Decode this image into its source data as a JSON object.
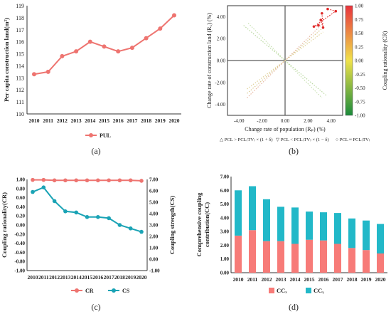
{
  "chart_data": [
    {
      "panel": "(a)",
      "type": "line",
      "categories": [
        "2010",
        "2011",
        "2012",
        "2013",
        "2014",
        "2015",
        "2016",
        "2017",
        "2018",
        "2019",
        "2020"
      ],
      "series": [
        {
          "name": "PUL",
          "values": [
            113.3,
            113.5,
            114.8,
            115.2,
            116.0,
            115.6,
            115.2,
            115.5,
            116.3,
            117.1,
            118.2
          ]
        }
      ],
      "ylabel": "Per capita construction land(m²)",
      "ylim": [
        110,
        119
      ],
      "yticks": [
        "110",
        "111",
        "112",
        "113",
        "114",
        "115",
        "116",
        "117",
        "118",
        "119"
      ],
      "color": "#ee7470"
    },
    {
      "panel": "(b)",
      "type": "scatter",
      "xlabel": "Change rate of population (Rₚ) (%)",
      "ylabel": "Change rate of construction land (R꜀) (%)",
      "xlim": [
        -5,
        5
      ],
      "ylim": [
        -5,
        5
      ],
      "xticks": [
        "-4.00",
        "-2.00",
        "0.00",
        "2.00",
        "4.00"
      ],
      "yticks": [
        "-4.00",
        "-2.00",
        "0.00",
        "2.00",
        "4.00"
      ],
      "points": [
        {
          "x": 3.7,
          "y": 4.7,
          "cr": 0.99
        },
        {
          "x": 4.4,
          "y": 4.5,
          "cr": 0.98
        },
        {
          "x": 2.5,
          "y": 3.1,
          "cr": 0.97
        },
        {
          "x": 2.9,
          "y": 3.2,
          "cr": 0.98
        },
        {
          "x": 3.1,
          "y": 3.7,
          "cr": 0.97
        },
        {
          "x": 3.3,
          "y": 3.0,
          "cr": 0.98
        },
        {
          "x": 3.2,
          "y": 4.3,
          "cr": 0.98
        }
      ],
      "colorbar": {
        "label": "Coupling rationality (CR)",
        "ticks": [
          "1.00",
          "0.75",
          "0.50",
          "0.25",
          "0.00",
          "-0.25",
          "-0.50",
          "-0.75",
          "-1.00"
        ],
        "colors": [
          "#e8323c",
          "#f0e24a",
          "#1a8a3a"
        ]
      },
      "legend": [
        "△ PCL > PCL₍TV₎ × (1 + δ)",
        "▽ PCL < PCL₍TV₎ × (1 − δ)",
        "○ PCL ≈ PCL₍TV₎"
      ]
    },
    {
      "panel": "(c)",
      "type": "line",
      "categories": [
        "2010",
        "2011",
        "2012",
        "2013",
        "2014",
        "2015",
        "2016",
        "2017",
        "2018",
        "2019",
        "2020"
      ],
      "series": [
        {
          "name": "CR",
          "axis": "left",
          "values": [
            0.99,
            0.99,
            0.98,
            0.98,
            0.98,
            0.98,
            0.98,
            0.98,
            0.98,
            0.98,
            0.97
          ],
          "color": "#ee7470"
        },
        {
          "name": "CS",
          "axis": "right",
          "values": [
            5.9,
            6.3,
            5.1,
            4.2,
            4.1,
            3.7,
            3.7,
            3.6,
            3.0,
            2.7,
            2.4
          ],
          "color": "#1aa3b5"
        }
      ],
      "ylabel_left": "Coupling rationality(CR)",
      "ylabel_right": "Coupling strength(CS)",
      "ylim_left": [
        -1,
        1
      ],
      "ylim_right": [
        -1,
        7
      ],
      "yticks_left": [
        "1.00",
        "0.80",
        "0.60",
        "0.40",
        "0.20",
        "0.00",
        "-0.20",
        "-0.40",
        "-0.60",
        "-0.80",
        "-1.00"
      ],
      "yticks_right": [
        "7.00",
        "6.00",
        "5.00",
        "4.00",
        "3.00",
        "2.00",
        "1.00",
        "0.00",
        "-1.00"
      ]
    },
    {
      "panel": "(d)",
      "type": "bar",
      "stacked": true,
      "categories": [
        "2010",
        "2011",
        "2012",
        "2013",
        "2014",
        "2015",
        "2016",
        "2017",
        "2018",
        "2019",
        "2020"
      ],
      "series": [
        {
          "name": "CCₓ",
          "values": [
            2.7,
            3.1,
            2.3,
            2.3,
            2.1,
            2.4,
            2.35,
            2.1,
            1.8,
            1.65,
            1.4
          ],
          "color": "#f77b78"
        },
        {
          "name": "CCᵧ",
          "values": [
            3.3,
            3.2,
            3.05,
            2.5,
            2.65,
            2.05,
            2.05,
            2.25,
            2.15,
            2.15,
            2.15
          ],
          "color": "#22b8c8"
        }
      ],
      "ylabel": "Comprehensive coupling contribution(CC)",
      "ylim": [
        0,
        7
      ],
      "yticks": [
        "0.00",
        "1.00",
        "2.00",
        "3.00",
        "4.00",
        "5.00",
        "6.00",
        "7.00"
      ]
    }
  ],
  "captions": {
    "a": "(a)",
    "b": "(b)",
    "c": "(c)",
    "d": "(d)"
  }
}
